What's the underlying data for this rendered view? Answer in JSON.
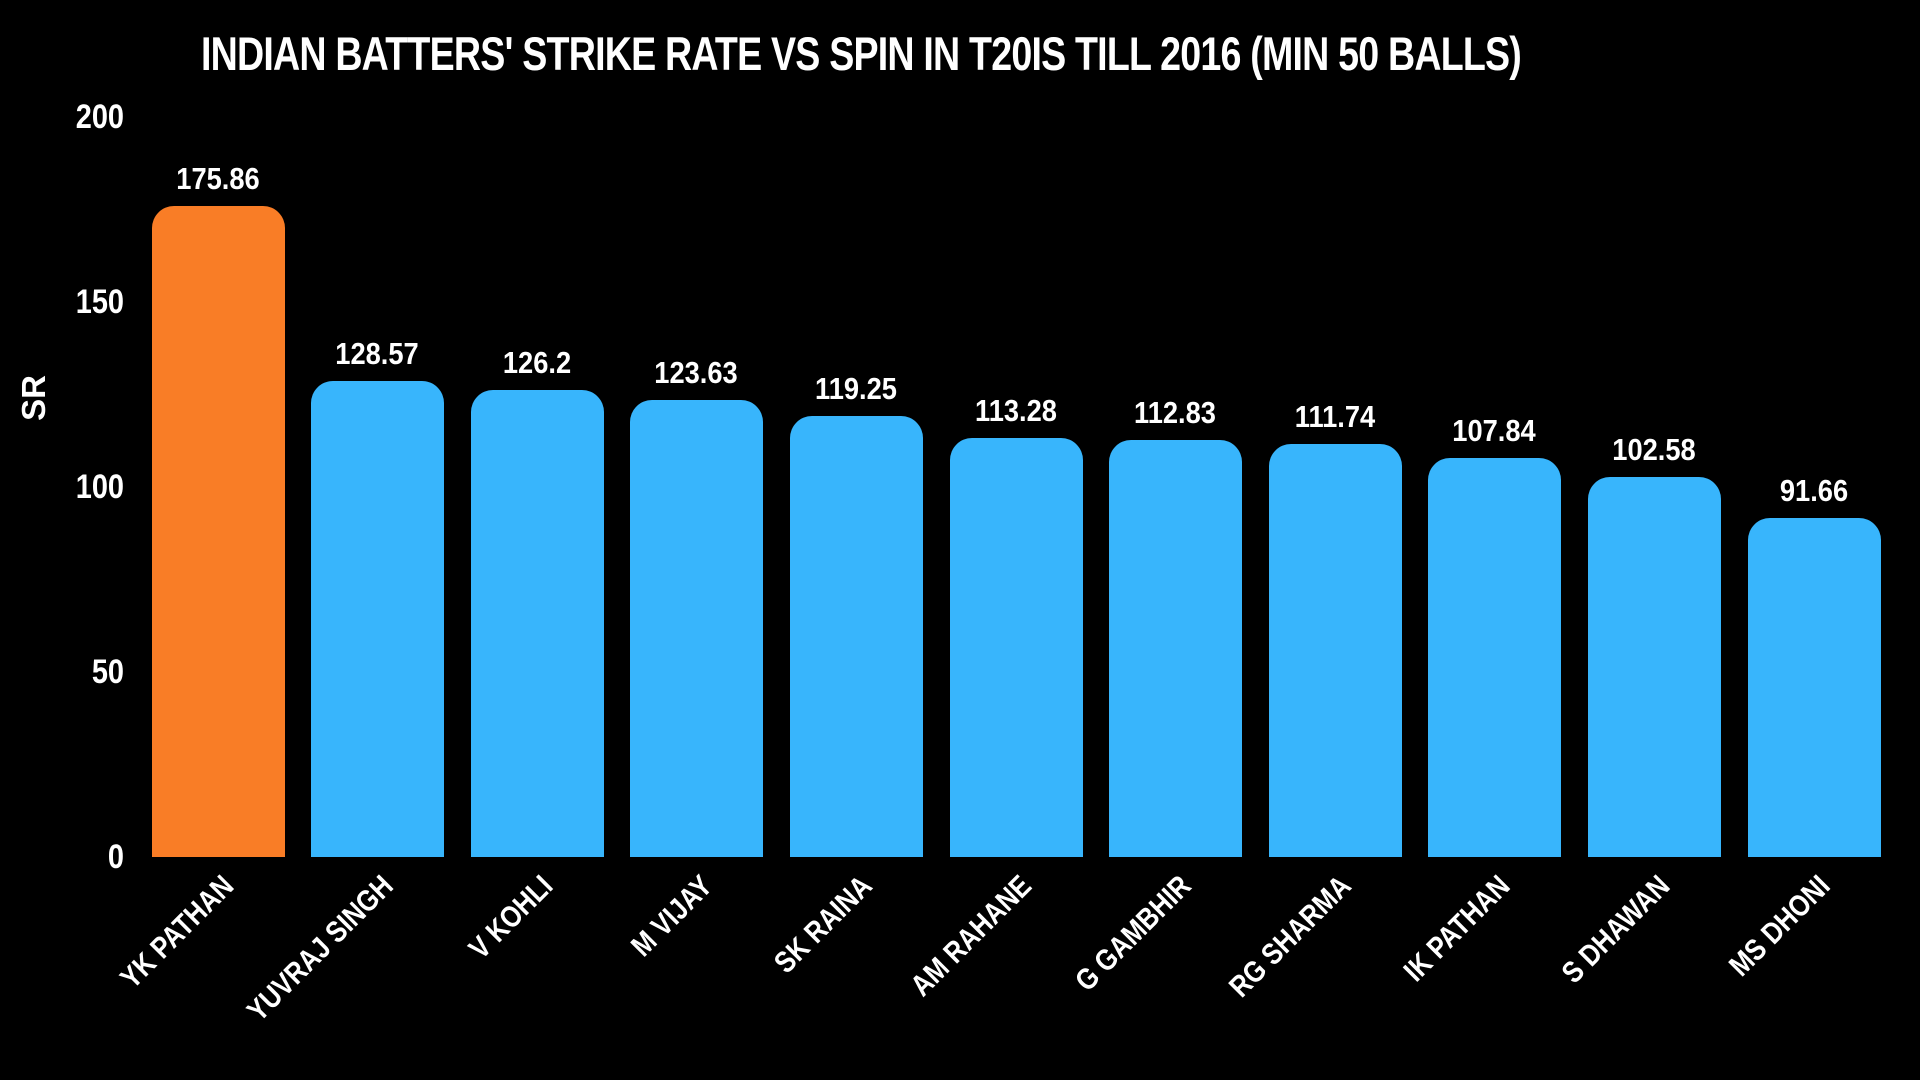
{
  "chart_data": {
    "type": "bar",
    "title": "INDIAN BATTERS' STRIKE RATE VS SPIN IN T20IS TILL 2016 (MIN 50 BALLS)",
    "xlabel": "",
    "ylabel": "SR",
    "categories": [
      "YK PATHAN",
      "YUVRAJ SINGH",
      "V KOHLI",
      "M VIJAY",
      "SK RAINA",
      "AM RAHANE",
      "G GAMBHIR",
      "RG SHARMA",
      "IK PATHAN",
      "S DHAWAN",
      "MS DHONI"
    ],
    "values": [
      175.86,
      128.57,
      126.2,
      123.63,
      119.25,
      113.28,
      112.83,
      111.74,
      107.84,
      102.58,
      91.66
    ],
    "value_labels": [
      "175.86",
      "128.57",
      "126.2",
      "123.63",
      "119.25",
      "113.28",
      "112.83",
      "111.74",
      "107.84",
      "102.58",
      "91.66"
    ],
    "yticks": [
      "0",
      "50",
      "100",
      "150",
      "200"
    ],
    "ylim": [
      0,
      200
    ],
    "grid": false,
    "legend": null,
    "colors": {
      "background": "#000000",
      "text": "#ffffff",
      "bar_default": "#38b5fc",
      "bar_highlight": "#f97d26"
    },
    "highlight_index": 0
  }
}
